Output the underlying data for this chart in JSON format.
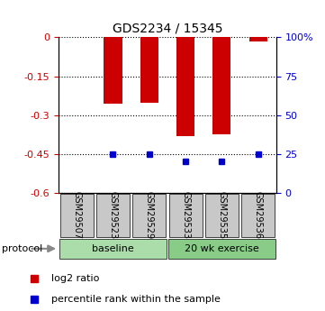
{
  "title": "GDS2234 / 15345",
  "samples": [
    "GSM29507",
    "GSM29523",
    "GSM29529",
    "GSM29533",
    "GSM29535",
    "GSM29536"
  ],
  "log2_ratios": [
    0.0,
    -0.255,
    -0.253,
    -0.382,
    -0.375,
    -0.015
  ],
  "percentile_ranks": [
    null,
    25,
    25,
    20,
    20,
    25
  ],
  "ylim_left": [
    -0.6,
    0.0
  ],
  "yticks_left": [
    0,
    -0.15,
    -0.3,
    -0.45,
    -0.6
  ],
  "yticks_right": [
    0,
    25,
    50,
    75,
    100
  ],
  "ytick_labels_left": [
    "0",
    "-0.15",
    "-0.3",
    "-0.45",
    "-0.6"
  ],
  "ytick_labels_right": [
    "0",
    "25",
    "50",
    "75",
    "100%"
  ],
  "groups": [
    {
      "label": "baseline",
      "start": 0,
      "end": 3,
      "color": "#aaddaa"
    },
    {
      "label": "20 wk exercise",
      "start": 3,
      "end": 6,
      "color": "#88cc88"
    }
  ],
  "bar_color": "#CC0000",
  "percentile_color": "#0000CC",
  "background_color": "#ffffff",
  "tick_label_color_left": "#CC0000",
  "tick_label_color_right": "#0000CC",
  "protocol_label": "protocol",
  "legend_log2": "log2 ratio",
  "legend_percentile": "percentile rank within the sample"
}
